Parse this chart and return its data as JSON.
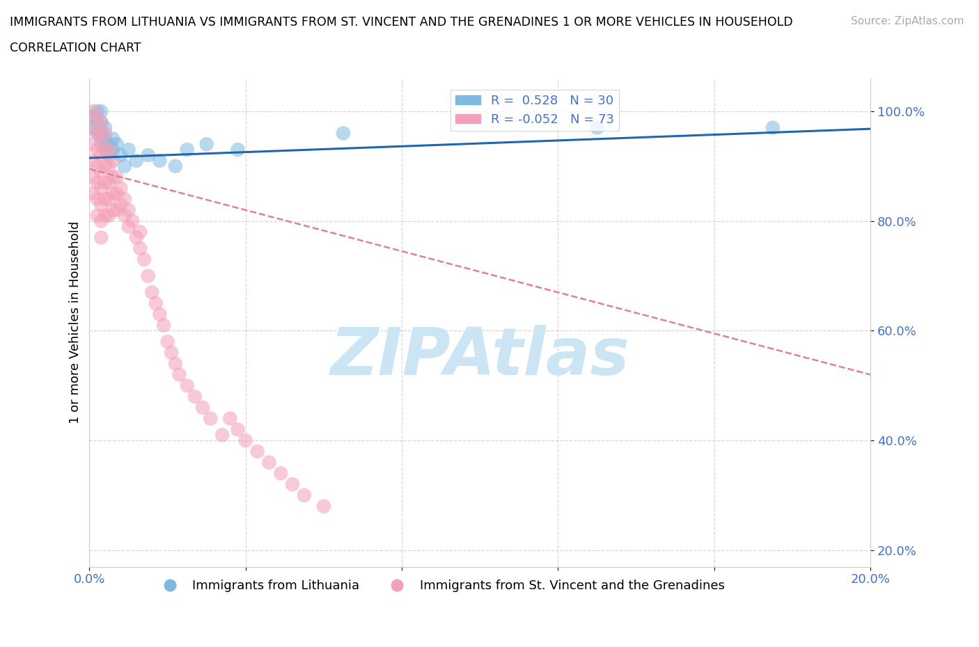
{
  "title_line1": "IMMIGRANTS FROM LITHUANIA VS IMMIGRANTS FROM ST. VINCENT AND THE GRENADINES 1 OR MORE VEHICLES IN HOUSEHOLD",
  "title_line2": "CORRELATION CHART",
  "source_text": "Source: ZipAtlas.com",
  "ylabel": "1 or more Vehicles in Household",
  "xlim": [
    0.0,
    0.2
  ],
  "ylim": [
    0.17,
    1.06
  ],
  "xticks": [
    0.0,
    0.04,
    0.08,
    0.12,
    0.16,
    0.2
  ],
  "xticklabels": [
    "0.0%",
    "",
    "",
    "",
    "",
    "20.0%"
  ],
  "yticks": [
    0.2,
    0.4,
    0.6,
    0.8,
    1.0
  ],
  "yticklabels": [
    "20.0%",
    "40.0%",
    "60.0%",
    "80.0%",
    "100.0%"
  ],
  "legend_blue_label": "R =  0.528   N = 30",
  "legend_pink_label": "R = -0.052   N = 73",
  "legend1_label": "Immigrants from Lithuania",
  "legend2_label": "Immigrants from St. Vincent and the Grenadines",
  "blue_color": "#7fb9e0",
  "pink_color": "#f4a0b8",
  "trend_blue_color": "#2166ac",
  "trend_pink_color": "#e08090",
  "watermark_text": "ZIPAtlas",
  "watermark_color": "#cce5f5",
  "blue_x": [
    0.001,
    0.001,
    0.002,
    0.002,
    0.002,
    0.003,
    0.003,
    0.003,
    0.003,
    0.004,
    0.004,
    0.004,
    0.005,
    0.005,
    0.006,
    0.006,
    0.007,
    0.008,
    0.009,
    0.01,
    0.012,
    0.015,
    0.018,
    0.022,
    0.025,
    0.03,
    0.038,
    0.065,
    0.13,
    0.175
  ],
  "blue_y": [
    0.97,
    0.99,
    0.96,
    0.98,
    1.0,
    0.94,
    0.96,
    0.98,
    1.0,
    0.93,
    0.95,
    0.97,
    0.92,
    0.94,
    0.93,
    0.95,
    0.94,
    0.92,
    0.9,
    0.93,
    0.91,
    0.92,
    0.91,
    0.9,
    0.93,
    0.94,
    0.93,
    0.96,
    0.97,
    0.97
  ],
  "pink_x": [
    0.001,
    0.001,
    0.001,
    0.001,
    0.001,
    0.001,
    0.002,
    0.002,
    0.002,
    0.002,
    0.002,
    0.002,
    0.002,
    0.003,
    0.003,
    0.003,
    0.003,
    0.003,
    0.003,
    0.003,
    0.003,
    0.004,
    0.004,
    0.004,
    0.004,
    0.004,
    0.004,
    0.005,
    0.005,
    0.005,
    0.005,
    0.005,
    0.006,
    0.006,
    0.006,
    0.006,
    0.007,
    0.007,
    0.007,
    0.008,
    0.008,
    0.009,
    0.009,
    0.01,
    0.01,
    0.011,
    0.012,
    0.013,
    0.013,
    0.014,
    0.015,
    0.016,
    0.017,
    0.018,
    0.019,
    0.02,
    0.021,
    0.022,
    0.023,
    0.025,
    0.027,
    0.029,
    0.031,
    0.034,
    0.036,
    0.038,
    0.04,
    0.043,
    0.046,
    0.049,
    0.052,
    0.055,
    0.06
  ],
  "pink_y": [
    1.0,
    0.97,
    0.94,
    0.91,
    0.88,
    0.85,
    0.99,
    0.96,
    0.93,
    0.9,
    0.87,
    0.84,
    0.81,
    0.98,
    0.95,
    0.92,
    0.89,
    0.86,
    0.83,
    0.8,
    0.77,
    0.96,
    0.93,
    0.9,
    0.87,
    0.84,
    0.81,
    0.93,
    0.9,
    0.87,
    0.84,
    0.81,
    0.91,
    0.88,
    0.85,
    0.82,
    0.88,
    0.85,
    0.82,
    0.86,
    0.83,
    0.84,
    0.81,
    0.82,
    0.79,
    0.8,
    0.77,
    0.78,
    0.75,
    0.73,
    0.7,
    0.67,
    0.65,
    0.63,
    0.61,
    0.58,
    0.56,
    0.54,
    0.52,
    0.5,
    0.48,
    0.46,
    0.44,
    0.41,
    0.44,
    0.42,
    0.4,
    0.38,
    0.36,
    0.34,
    0.32,
    0.3,
    0.28
  ],
  "pink_trend_y0": 0.895,
  "pink_trend_y1": 0.52,
  "blue_trend_y0": 0.915,
  "blue_trend_y1": 0.968
}
